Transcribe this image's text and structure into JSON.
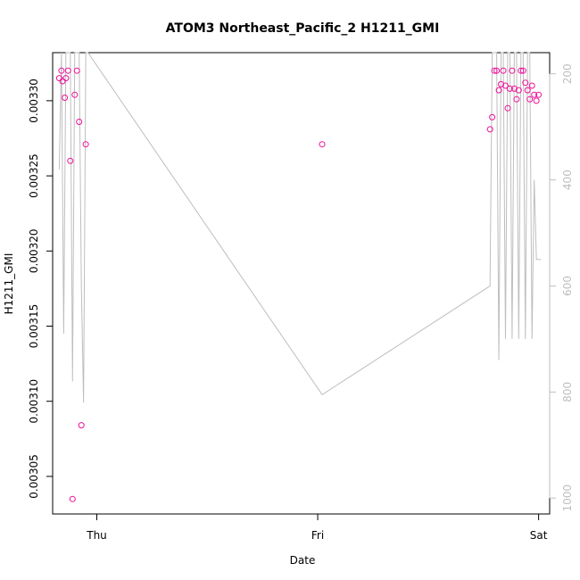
{
  "chart_data": {
    "type": "scatter",
    "title": "ATOM3 Northeast_Pacific_2 H1211_GMI",
    "xlabel": "Date",
    "ylabel": "H1211_GMI",
    "x_ticks": [
      "Thu",
      "Fri",
      "Sat"
    ],
    "y_ticks": [
      "0.00305",
      "0.00310",
      "0.00315",
      "0.00320",
      "0.00325",
      "0.00330"
    ],
    "y_right_ticks": [
      "200",
      "400",
      "600",
      "800",
      "1000"
    ],
    "xlim": [
      -0.2,
      2.05
    ],
    "ylim": [
      0.003025,
      0.003332
    ],
    "y_right_lim": [
      1030,
      160
    ],
    "colors": {
      "points": "#ee1199",
      "line": "#bebebe",
      "axis": "#000000",
      "right_axis": "#bebebe"
    },
    "series": [
      {
        "type": "points",
        "x": [
          -0.17,
          -0.16,
          -0.155,
          -0.145,
          -0.14,
          -0.13,
          -0.12,
          -0.11,
          -0.1,
          -0.09,
          -0.08,
          -0.07,
          -0.05,
          1.02,
          1.78,
          1.79,
          1.8,
          1.81,
          1.82,
          1.83,
          1.84,
          1.85,
          1.86,
          1.87,
          1.88,
          1.89,
          1.9,
          1.91,
          1.92,
          1.93,
          1.94,
          1.95,
          1.96,
          1.97,
          1.98,
          1.99,
          2.0
        ],
        "y": [
          0.003315,
          0.00332,
          0.003313,
          0.003302,
          0.003315,
          0.00332,
          0.00326,
          0.003035,
          0.003304,
          0.00332,
          0.003286,
          0.003084,
          0.003271,
          0.003271,
          0.003281,
          0.003289,
          0.00332,
          0.00332,
          0.003307,
          0.003311,
          0.00332,
          0.00331,
          0.003295,
          0.003308,
          0.00332,
          0.003308,
          0.003301,
          0.003307,
          0.00332,
          0.00332,
          0.003312,
          0.003307,
          0.003301,
          0.00331,
          0.003304,
          0.0033,
          0.003304
        ]
      },
      {
        "type": "line",
        "axis": "right",
        "x": [
          -0.17,
          -0.16,
          -0.15,
          -0.14,
          -0.13,
          -0.12,
          -0.11,
          -0.1,
          -0.09,
          -0.08,
          -0.07,
          -0.06,
          -0.05,
          -0.04,
          1.02,
          1.78,
          1.79,
          1.8,
          1.81,
          1.82,
          1.83,
          1.84,
          1.85,
          1.86,
          1.87,
          1.88,
          1.89,
          1.9,
          1.91,
          1.92,
          1.93,
          1.94,
          1.95,
          1.96,
          1.97,
          1.98,
          1.99,
          2.0,
          2.01
        ],
        "y": [
          380,
          100,
          690,
          100,
          100,
          100,
          780,
          100,
          100,
          100,
          600,
          820,
          100,
          100,
          805,
          600,
          100,
          100,
          100,
          740,
          100,
          100,
          700,
          100,
          100,
          700,
          100,
          100,
          700,
          100,
          100,
          700,
          100,
          100,
          700,
          400,
          550,
          550,
          550
        ]
      }
    ]
  }
}
